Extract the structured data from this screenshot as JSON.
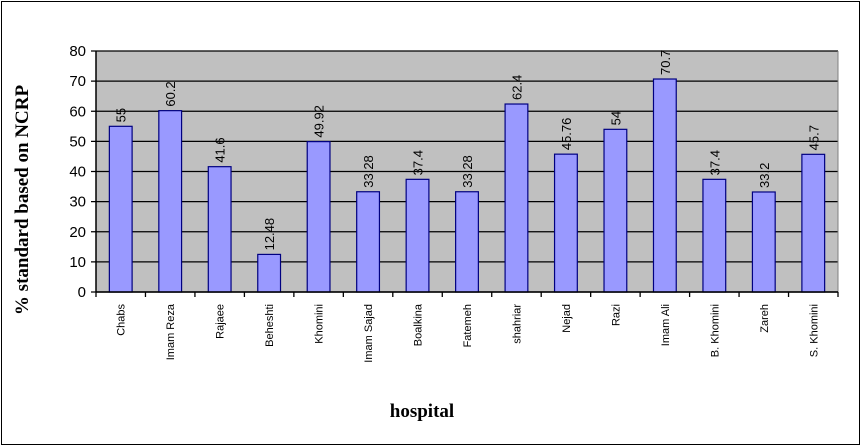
{
  "chart_data": {
    "type": "bar",
    "title": "",
    "xlabel": "hospital",
    "ylabel": "%  standard based on NCRP",
    "ylim": [
      0,
      80
    ],
    "yticks": [
      0,
      10,
      20,
      30,
      40,
      50,
      60,
      70,
      80
    ],
    "grid": true,
    "legend": "none",
    "categories": [
      "Chabs",
      "Imam Reza",
      "Rajaee",
      "Beheshti",
      "Khomini",
      "Imam Sajad",
      "Boalkina",
      "Fatemeh",
      "shahriar",
      "Nejad",
      "Razi",
      "Imam Ali",
      "B. Khomini",
      "Zareh",
      "S. Khomini"
    ],
    "values": [
      55,
      60.2,
      41.6,
      12.48,
      49.92,
      33.28,
      37.4,
      33.28,
      62.4,
      45.76,
      54,
      70.7,
      37.4,
      33.2,
      45.7
    ],
    "data_labels": [
      "55",
      "60.2",
      "41.6",
      "12.48",
      "49.92",
      "33.28",
      "37.4",
      "33.28",
      "62.4",
      "45.76",
      "54",
      "70.7",
      "37.4",
      "33.2",
      "45.7"
    ],
    "colors": {
      "bar": "#9999ff",
      "bar_edge": "#000080",
      "plot_bg": "#c0c0c0"
    }
  }
}
